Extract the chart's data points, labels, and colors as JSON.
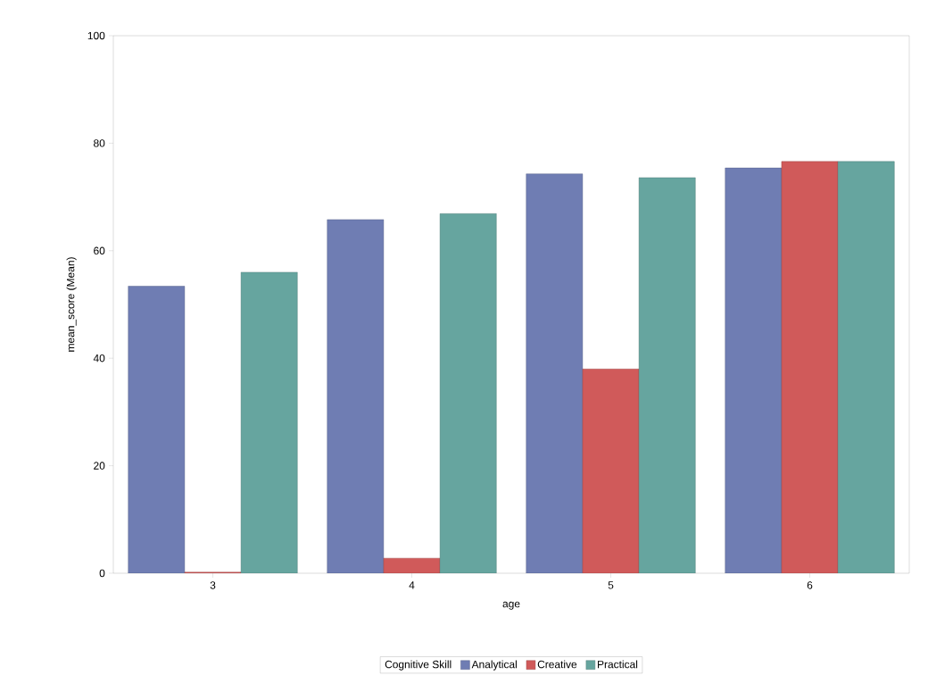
{
  "chart_data": {
    "type": "bar",
    "xlabel": "age",
    "ylabel": "mean_score (Mean)",
    "legend_title": "Cognitive Skill",
    "categories": [
      "3",
      "4",
      "5",
      "6"
    ],
    "series": [
      {
        "name": "Analytical",
        "color": "#6f7db3",
        "values": [
          53.4,
          65.8,
          74.3,
          75.4
        ]
      },
      {
        "name": "Creative",
        "color": "#d05a5a",
        "values": [
          0.2,
          2.8,
          38.0,
          76.6
        ]
      },
      {
        "name": "Practical",
        "color": "#66a59f",
        "values": [
          56.0,
          66.9,
          73.6,
          76.6
        ]
      }
    ],
    "ylim": [
      0,
      100
    ],
    "yticks": [
      0,
      20,
      40,
      60,
      80,
      100
    ],
    "grid": false,
    "legend": "bottom"
  }
}
